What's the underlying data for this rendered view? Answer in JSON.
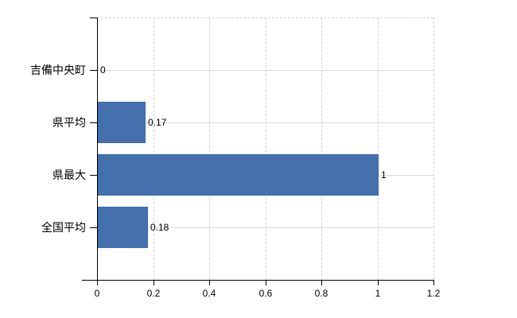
{
  "chart_data": {
    "type": "bar",
    "orientation": "horizontal",
    "title": "",
    "xlabel": "",
    "ylabel": "",
    "categories": [
      "吉備中央町",
      "県平均",
      "県最大",
      "全国平均"
    ],
    "values": [
      0,
      0.17,
      1,
      0.18
    ],
    "value_labels": [
      "0",
      "0.17",
      "1",
      "0.18"
    ],
    "xlim": [
      0,
      1.2
    ],
    "xticks": [
      0,
      0.2,
      0.4,
      0.6,
      0.8,
      1,
      1.2
    ],
    "xtick_labels": [
      "0",
      "0.2",
      "0.4",
      "0.6",
      "0.8",
      "1",
      "1.2"
    ],
    "grid": true,
    "legend_position": "none",
    "bar_color": "#4471ae",
    "bar_border_color": "#3c69a4",
    "h_gridline_color": "#d6dcd6",
    "v_gridline_color": "#d4d4d8",
    "axis_color": "#000000",
    "text_color": "#000000",
    "background_color": "#ffffff"
  }
}
